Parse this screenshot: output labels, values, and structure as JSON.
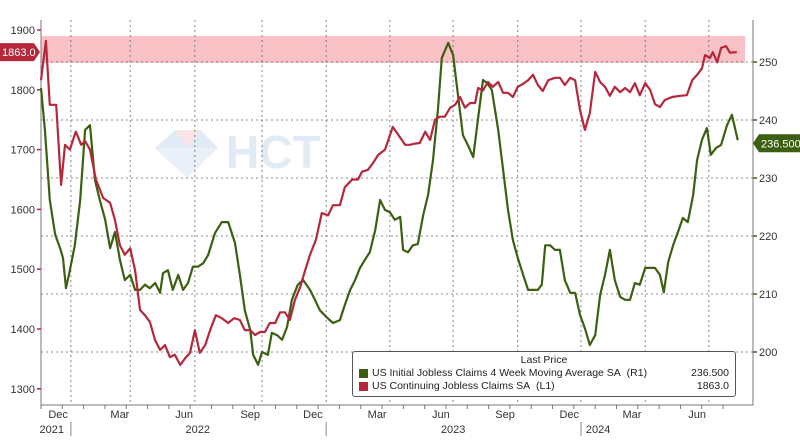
{
  "chart_data": {
    "type": "line",
    "title": "",
    "x_unit": "week",
    "legend_title": "Last Price",
    "legend_placement": "bottom-right",
    "left_axis": {
      "ticks": [
        1300,
        1400,
        1500,
        1600,
        1700,
        1800,
        1900
      ],
      "range": [
        1280,
        1910
      ]
    },
    "right_axis": {
      "ticks": [
        200,
        210,
        220,
        230,
        240,
        250
      ],
      "range": [
        192,
        255
      ]
    },
    "x_month_ticks": [
      {
        "label": "Dec",
        "w": 3.5
      },
      {
        "label": "Mar",
        "w": 16.1
      },
      {
        "label": "Jun",
        "w": 29.2
      },
      {
        "label": "Sep",
        "w": 42.7
      },
      {
        "label": "Dec",
        "w": 55.5
      },
      {
        "label": "Mar",
        "w": 68.6
      },
      {
        "label": "Jun",
        "w": 81.6
      },
      {
        "label": "Sep",
        "w": 94.7
      },
      {
        "label": "Dec",
        "w": 107.8
      },
      {
        "label": "Mar",
        "w": 120.6
      },
      {
        "label": "Jun",
        "w": 133.9
      }
    ],
    "x_year_ticks": [
      {
        "label": "2021",
        "w": 2.2
      },
      {
        "label": "2022",
        "w": 32
      },
      {
        "label": "2023",
        "w": 84.1
      },
      {
        "label": "2024",
        "w": 113.7
      }
    ],
    "year_boundaries": [
      6.1,
      58.2,
      110.2
    ],
    "quarter_gridlines": [
      6.1,
      18.2,
      31.4,
      45.1,
      58.2,
      71.2,
      84.1,
      97.3,
      110.2,
      123.3,
      136.3
    ],
    "highlight_band": {
      "axis": "left",
      "from": 1845,
      "to": 1890,
      "color": "#f7b6bb"
    },
    "series": [
      {
        "name": "US Initial Jobless Claims 4 Week Moving Average SA",
        "axis_tag": "(R1)",
        "axis": "right",
        "color": "#3d5f12",
        "last_value": "236.500",
        "points": [
          [
            0,
            245.5
          ],
          [
            0.8,
            238.3
          ],
          [
            1.8,
            226.2
          ],
          [
            2.9,
            220.2
          ],
          [
            3.9,
            217.9
          ],
          [
            4.5,
            216.2
          ],
          [
            5.1,
            211.0
          ],
          [
            5.9,
            214.1
          ],
          [
            6.9,
            218.4
          ],
          [
            8.0,
            226.2
          ],
          [
            9.0,
            238.3
          ],
          [
            10.0,
            239.1
          ],
          [
            11.0,
            229.7
          ],
          [
            12.0,
            226.2
          ],
          [
            13.1,
            222.8
          ],
          [
            14.1,
            217.9
          ],
          [
            15.1,
            220.7
          ],
          [
            16.1,
            215.9
          ],
          [
            17.1,
            212.4
          ],
          [
            18.2,
            213.3
          ],
          [
            19.2,
            210.7
          ],
          [
            20.2,
            210.7
          ],
          [
            21.2,
            211.6
          ],
          [
            22.2,
            211.0
          ],
          [
            23.3,
            211.9
          ],
          [
            24.3,
            210.2
          ],
          [
            24.9,
            213.6
          ],
          [
            25.9,
            214.1
          ],
          [
            26.9,
            210.7
          ],
          [
            28.0,
            213.3
          ],
          [
            29.0,
            210.7
          ],
          [
            30.0,
            211.9
          ],
          [
            31.0,
            214.7
          ],
          [
            32.0,
            214.7
          ],
          [
            33.1,
            215.3
          ],
          [
            34.1,
            216.7
          ],
          [
            35.5,
            220.5
          ],
          [
            36.9,
            222.4
          ],
          [
            38.2,
            222.4
          ],
          [
            39.6,
            218.8
          ],
          [
            40.6,
            213.3
          ],
          [
            41.6,
            207.2
          ],
          [
            42.7,
            203.8
          ],
          [
            43.3,
            199.5
          ],
          [
            44.3,
            197.8
          ],
          [
            45.1,
            200.0
          ],
          [
            46.3,
            199.5
          ],
          [
            47.1,
            203.3
          ],
          [
            48.2,
            202.9
          ],
          [
            49.2,
            202.1
          ],
          [
            50.2,
            204.3
          ],
          [
            51.2,
            209.0
          ],
          [
            52.4,
            211.6
          ],
          [
            53.5,
            212.4
          ],
          [
            54.9,
            210.7
          ],
          [
            55.9,
            209.0
          ],
          [
            56.9,
            207.2
          ],
          [
            58.4,
            205.9
          ],
          [
            59.6,
            205.0
          ],
          [
            61.0,
            205.5
          ],
          [
            62.0,
            208.1
          ],
          [
            63.1,
            210.7
          ],
          [
            64.1,
            212.4
          ],
          [
            65.1,
            214.5
          ],
          [
            66.1,
            215.9
          ],
          [
            67.1,
            217.2
          ],
          [
            68.2,
            221.0
          ],
          [
            69.2,
            226.2
          ],
          [
            70.2,
            224.5
          ],
          [
            71.2,
            224.1
          ],
          [
            72.2,
            222.8
          ],
          [
            73.3,
            223.3
          ],
          [
            73.9,
            217.6
          ],
          [
            74.9,
            217.2
          ],
          [
            75.9,
            218.4
          ],
          [
            76.9,
            218.6
          ],
          [
            78.0,
            223.6
          ],
          [
            79.0,
            227.1
          ],
          [
            80.0,
            233.1
          ],
          [
            81.0,
            241.7
          ],
          [
            81.8,
            250.7
          ],
          [
            83.1,
            253.3
          ],
          [
            84.1,
            251.2
          ],
          [
            85.1,
            244.3
          ],
          [
            86.1,
            237.4
          ],
          [
            87.1,
            235.7
          ],
          [
            88.2,
            233.6
          ],
          [
            89.2,
            240.3
          ],
          [
            90.2,
            246.9
          ],
          [
            91.0,
            246.4
          ],
          [
            92.0,
            245.2
          ],
          [
            93.3,
            238.3
          ],
          [
            94.3,
            231.4
          ],
          [
            95.3,
            224.5
          ],
          [
            96.3,
            219.3
          ],
          [
            97.3,
            216.2
          ],
          [
            98.4,
            213.3
          ],
          [
            99.4,
            210.7
          ],
          [
            100.4,
            210.7
          ],
          [
            101.4,
            210.7
          ],
          [
            102.2,
            211.6
          ],
          [
            102.9,
            218.4
          ],
          [
            103.9,
            218.4
          ],
          [
            104.9,
            217.6
          ],
          [
            105.9,
            217.6
          ],
          [
            106.9,
            212.4
          ],
          [
            108.0,
            210.2
          ],
          [
            109.0,
            210.2
          ],
          [
            110.0,
            206.4
          ],
          [
            111.0,
            204.1
          ],
          [
            112.0,
            201.2
          ],
          [
            113.1,
            202.9
          ],
          [
            114.1,
            209.8
          ],
          [
            115.1,
            213.3
          ],
          [
            116.1,
            217.6
          ],
          [
            117.1,
            212.4
          ],
          [
            118.2,
            209.5
          ],
          [
            119.2,
            209.0
          ],
          [
            120.2,
            209.0
          ],
          [
            121.2,
            211.9
          ],
          [
            122.2,
            211.6
          ],
          [
            123.3,
            214.5
          ],
          [
            124.3,
            214.5
          ],
          [
            125.3,
            214.5
          ],
          [
            126.3,
            213.3
          ],
          [
            127.1,
            210.3
          ],
          [
            128.0,
            215.5
          ],
          [
            129.0,
            218.4
          ],
          [
            130.0,
            220.7
          ],
          [
            131.0,
            223.1
          ],
          [
            132.0,
            222.4
          ],
          [
            133.1,
            227.1
          ],
          [
            133.9,
            233.1
          ],
          [
            134.9,
            236.6
          ],
          [
            135.9,
            238.6
          ],
          [
            136.7,
            234.0
          ],
          [
            137.8,
            235.2
          ],
          [
            138.8,
            235.7
          ],
          [
            140.0,
            239.1
          ],
          [
            141.0,
            240.9
          ],
          [
            142.2,
            236.5
          ]
        ]
      },
      {
        "name": "US Continuing Jobless Claims SA",
        "axis_tag": "(L1)",
        "axis": "left",
        "color": "#b5283b",
        "last_value": "1863.0",
        "points": [
          [
            0,
            1816
          ],
          [
            1.0,
            1882
          ],
          [
            1.8,
            1775
          ],
          [
            3.1,
            1775
          ],
          [
            4.1,
            1641
          ],
          [
            4.9,
            1708
          ],
          [
            5.9,
            1700
          ],
          [
            7.1,
            1730
          ],
          [
            8.2,
            1708
          ],
          [
            9.0,
            1714
          ],
          [
            10.0,
            1700
          ],
          [
            11.2,
            1650
          ],
          [
            12.7,
            1619
          ],
          [
            14.1,
            1611
          ],
          [
            15.1,
            1582
          ],
          [
            16.1,
            1540
          ],
          [
            17.1,
            1524
          ],
          [
            18.2,
            1535
          ],
          [
            19.2,
            1498
          ],
          [
            20.2,
            1432
          ],
          [
            21.2,
            1423
          ],
          [
            22.2,
            1412
          ],
          [
            23.3,
            1381
          ],
          [
            24.3,
            1365
          ],
          [
            25.3,
            1373
          ],
          [
            26.3,
            1353
          ],
          [
            27.3,
            1357
          ],
          [
            28.4,
            1340
          ],
          [
            29.4,
            1351
          ],
          [
            30.4,
            1360
          ],
          [
            31.4,
            1398
          ],
          [
            32.4,
            1360
          ],
          [
            33.5,
            1373
          ],
          [
            34.5,
            1398
          ],
          [
            35.7,
            1423
          ],
          [
            36.9,
            1418
          ],
          [
            38.2,
            1410
          ],
          [
            39.4,
            1418
          ],
          [
            40.6,
            1415
          ],
          [
            41.6,
            1398
          ],
          [
            42.7,
            1398
          ],
          [
            43.7,
            1390
          ],
          [
            44.7,
            1395
          ],
          [
            45.7,
            1395
          ],
          [
            46.7,
            1410
          ],
          [
            47.8,
            1410
          ],
          [
            48.8,
            1428
          ],
          [
            49.8,
            1428
          ],
          [
            50.8,
            1415
          ],
          [
            51.8,
            1448
          ],
          [
            52.9,
            1470
          ],
          [
            53.9,
            1498
          ],
          [
            54.9,
            1524
          ],
          [
            56.1,
            1549
          ],
          [
            57.3,
            1594
          ],
          [
            58.6,
            1590
          ],
          [
            59.6,
            1607
          ],
          [
            61.0,
            1607
          ],
          [
            62.0,
            1637
          ],
          [
            63.5,
            1650
          ],
          [
            64.7,
            1650
          ],
          [
            65.5,
            1663
          ],
          [
            66.7,
            1666
          ],
          [
            67.8,
            1678
          ],
          [
            68.8,
            1691
          ],
          [
            70.2,
            1700
          ],
          [
            71.8,
            1738
          ],
          [
            73.3,
            1720
          ],
          [
            74.3,
            1708
          ],
          [
            75.3,
            1708
          ],
          [
            76.3,
            1710
          ],
          [
            77.3,
            1711
          ],
          [
            78.4,
            1730
          ],
          [
            79.4,
            1716
          ],
          [
            80.4,
            1750
          ],
          [
            81.4,
            1755
          ],
          [
            82.4,
            1755
          ],
          [
            83.5,
            1770
          ],
          [
            84.5,
            1775
          ],
          [
            85.5,
            1788
          ],
          [
            86.5,
            1770
          ],
          [
            87.6,
            1778
          ],
          [
            88.6,
            1778
          ],
          [
            89.2,
            1803
          ],
          [
            90.2,
            1799
          ],
          [
            91.2,
            1813
          ],
          [
            92.2,
            1805
          ],
          [
            93.3,
            1813
          ],
          [
            94.3,
            1795
          ],
          [
            95.3,
            1795
          ],
          [
            96.3,
            1788
          ],
          [
            97.3,
            1805
          ],
          [
            98.4,
            1810
          ],
          [
            99.4,
            1816
          ],
          [
            100.4,
            1825
          ],
          [
            101.4,
            1808
          ],
          [
            102.4,
            1798
          ],
          [
            103.5,
            1816
          ],
          [
            104.9,
            1820
          ],
          [
            105.9,
            1820
          ],
          [
            106.9,
            1808
          ],
          [
            108.0,
            1820
          ],
          [
            109.0,
            1816
          ],
          [
            110.0,
            1766
          ],
          [
            111.0,
            1733
          ],
          [
            112.0,
            1761
          ],
          [
            113.1,
            1830
          ],
          [
            114.1,
            1813
          ],
          [
            115.1,
            1805
          ],
          [
            116.1,
            1790
          ],
          [
            117.1,
            1805
          ],
          [
            118.2,
            1796
          ],
          [
            119.2,
            1803
          ],
          [
            120.2,
            1796
          ],
          [
            121.2,
            1811
          ],
          [
            122.2,
            1791
          ],
          [
            123.3,
            1811
          ],
          [
            124.3,
            1800
          ],
          [
            125.3,
            1776
          ],
          [
            126.3,
            1771
          ],
          [
            127.3,
            1783
          ],
          [
            128.8,
            1788
          ],
          [
            130.4,
            1790
          ],
          [
            131.8,
            1791
          ],
          [
            132.9,
            1816
          ],
          [
            133.9,
            1825
          ],
          [
            134.9,
            1836
          ],
          [
            135.5,
            1858
          ],
          [
            136.5,
            1853
          ],
          [
            137.1,
            1863
          ],
          [
            138.0,
            1846
          ],
          [
            138.8,
            1870
          ],
          [
            139.8,
            1873
          ],
          [
            140.6,
            1862
          ],
          [
            142.0,
            1863
          ]
        ]
      }
    ]
  },
  "watermark": "HCT"
}
